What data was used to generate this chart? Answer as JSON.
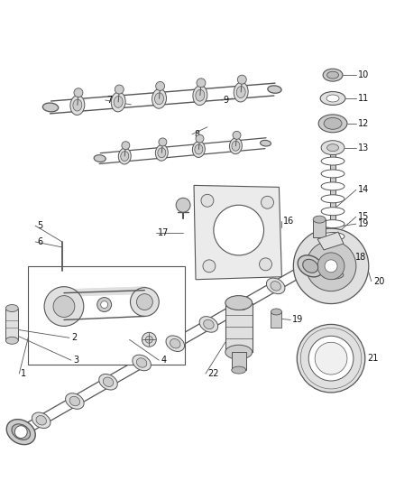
{
  "bg_color": "#ffffff",
  "line_color": "#555555",
  "fig_width": 4.38,
  "fig_height": 5.33,
  "dpi": 100
}
